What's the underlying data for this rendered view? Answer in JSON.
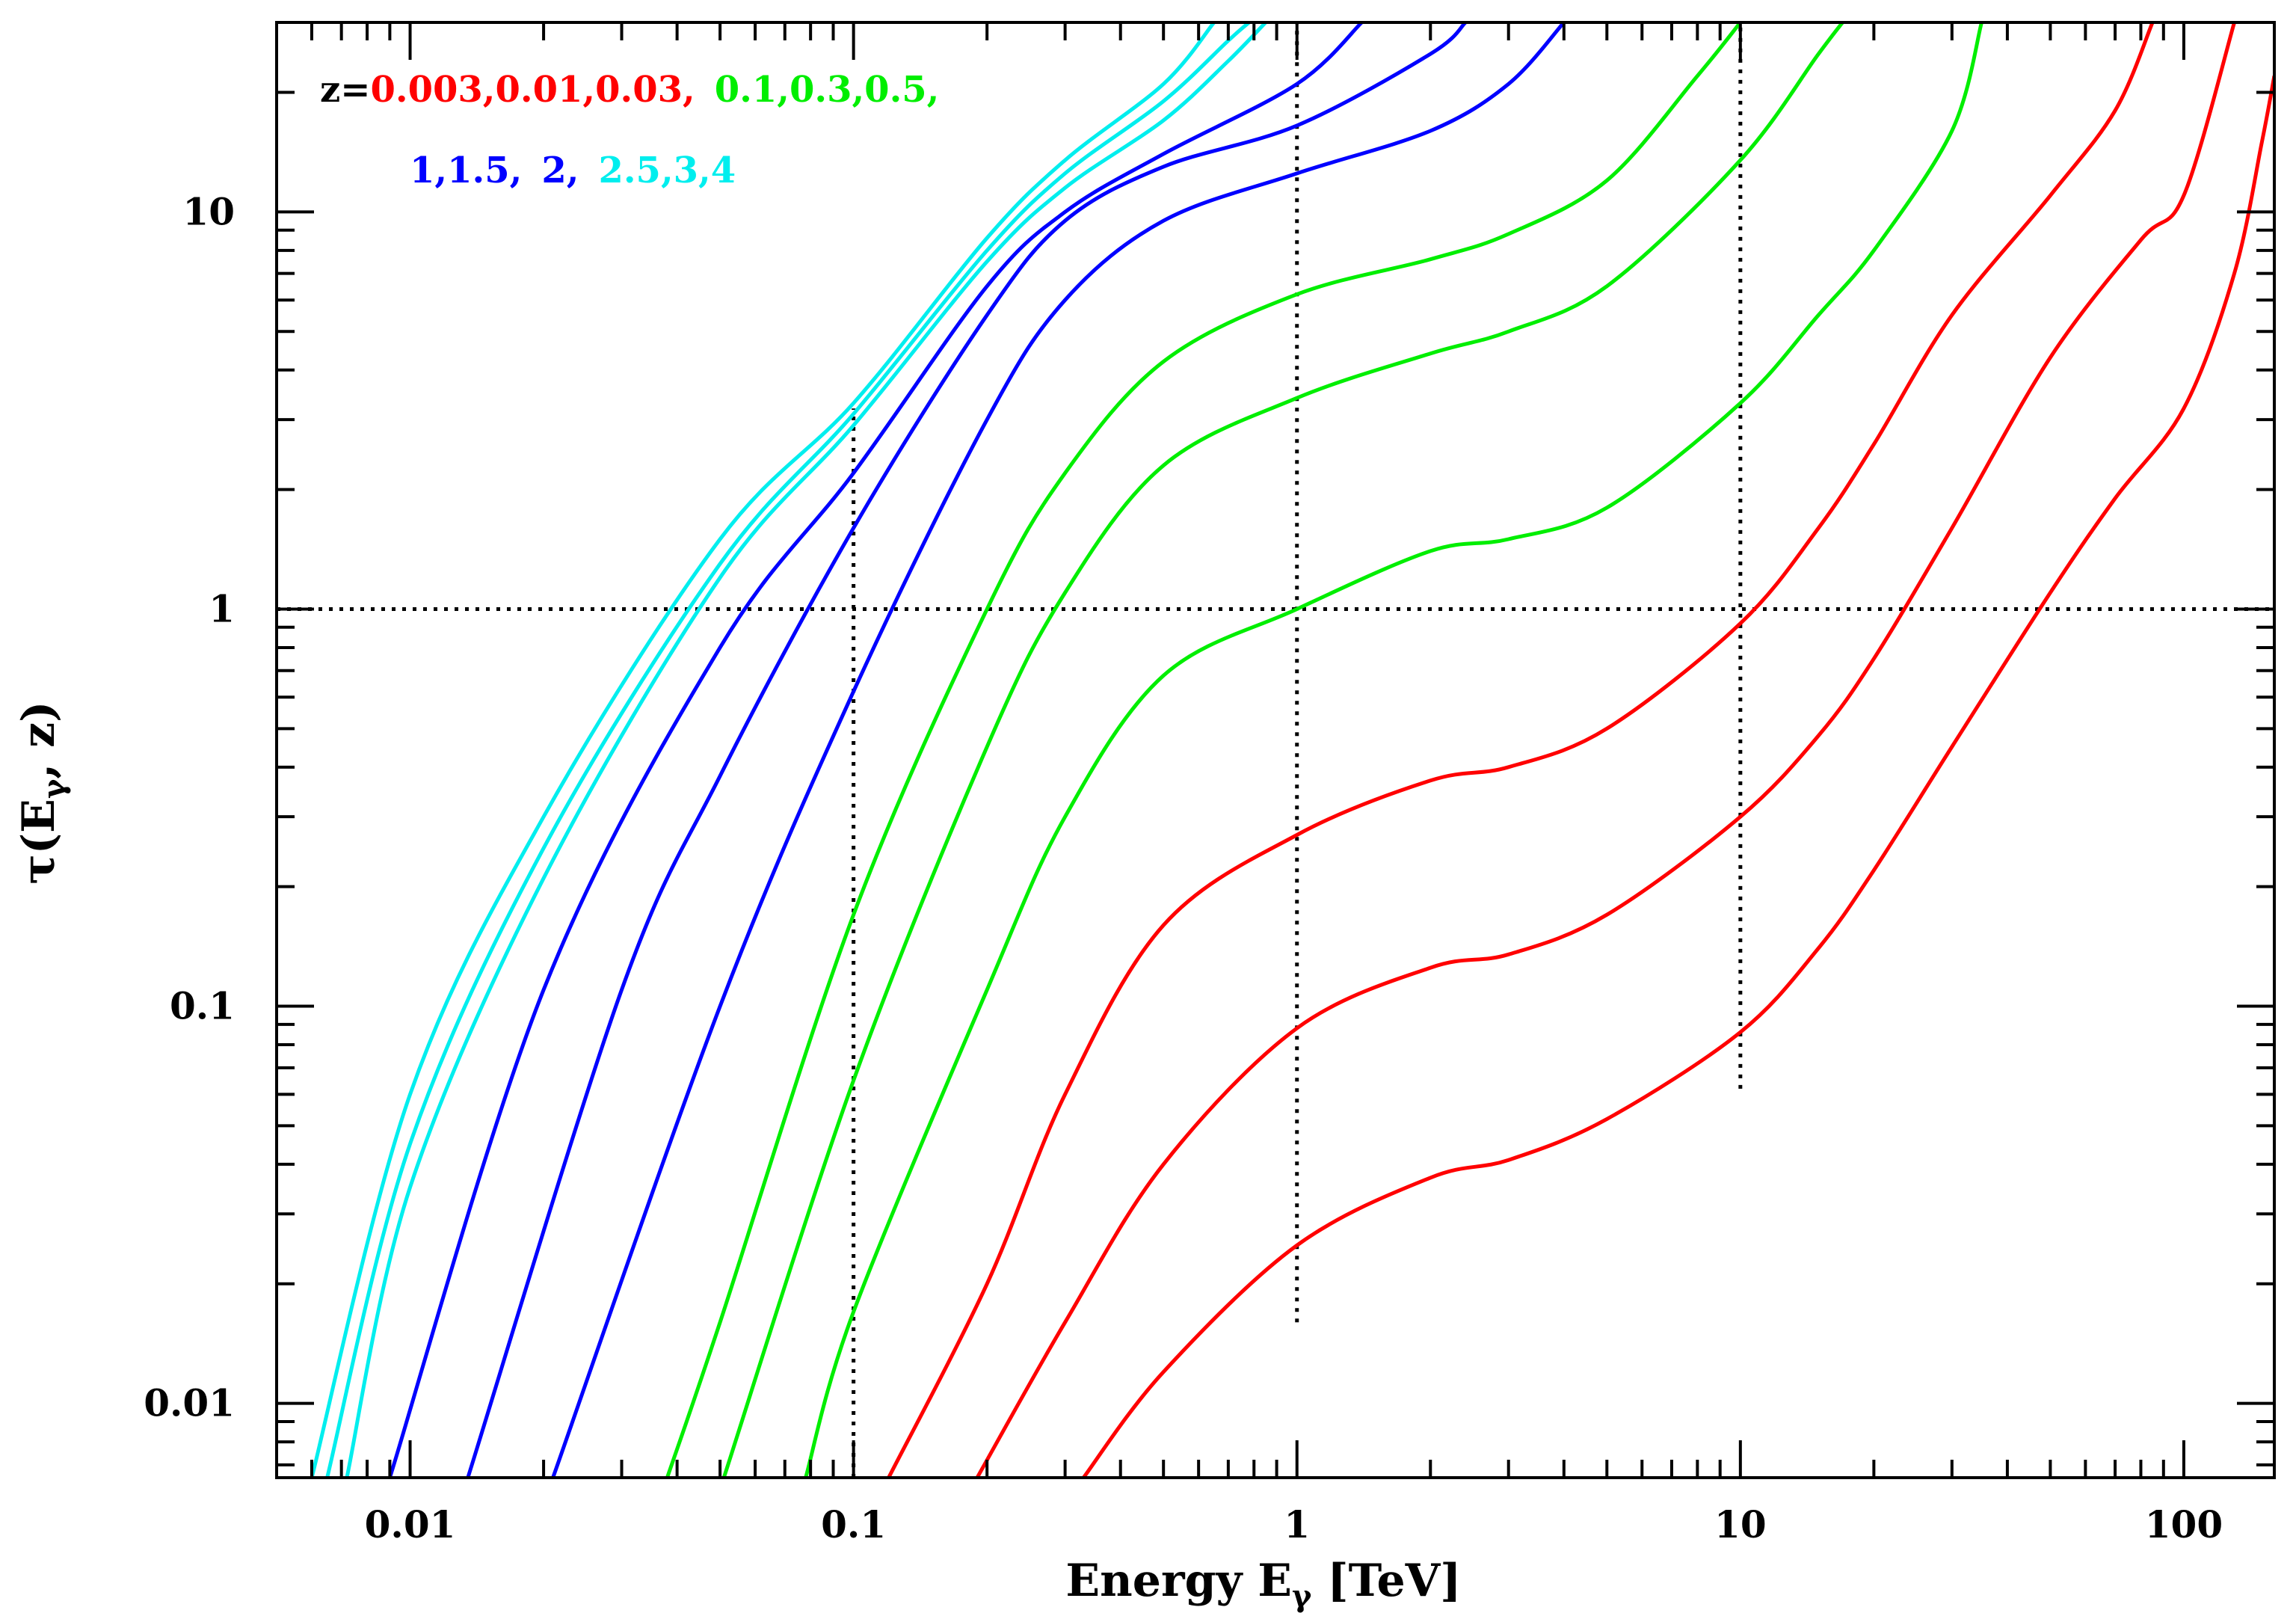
{
  "chart_data": {
    "type": "line",
    "xscale": "log",
    "yscale": "log",
    "xlim": [
      0.005,
      160
    ],
    "ylim": [
      0.0065,
      30
    ],
    "xlabel": "Energy E",
    "xlabel_sub": "γ",
    "xlabel_unit": "[TeV]",
    "ylabel": "τ(E",
    "ylabel_sub": "γ",
    "ylabel_end": ", z)",
    "x_ticks": [
      {
        "value": 0.01,
        "label": "0.01"
      },
      {
        "value": 0.1,
        "label": "0.1"
      },
      {
        "value": 1,
        "label": "1"
      },
      {
        "value": 10,
        "label": "10"
      },
      {
        "value": 100,
        "label": "100"
      }
    ],
    "y_ticks": [
      {
        "value": 0.01,
        "label": "0.01"
      },
      {
        "value": 0.1,
        "label": "0.1"
      },
      {
        "value": 1,
        "label": "1"
      },
      {
        "value": 10,
        "label": "10"
      }
    ],
    "reference_lines": [
      {
        "orientation": "horizontal",
        "value": 1,
        "from": 0.005,
        "to": 160
      },
      {
        "orientation": "vertical",
        "value": 0.1,
        "from": 0.0065,
        "to": 3.2
      },
      {
        "orientation": "vertical",
        "value": 1,
        "from": 0.016,
        "to": 30
      },
      {
        "orientation": "vertical",
        "value": 10,
        "from": 0.062,
        "to": 30
      }
    ],
    "legend": {
      "prefix": "z=",
      "line1": [
        {
          "text": "0.003,0.01,0.03,",
          "color": "#ff0000"
        },
        {
          "text": "0.1,0.3,0.5,",
          "color": "#00ee00"
        }
      ],
      "line2": [
        {
          "text": "1,1.5,",
          "color": "#0000ff"
        },
        {
          "text": "2,",
          "color": "#0000ff"
        },
        {
          "text": "2.5,3,4",
          "color": "#00eeee"
        }
      ]
    },
    "series": [
      {
        "name": "z=0.003",
        "color": "#ff0000",
        "points": [
          [
            0.33,
            0.0065
          ],
          [
            0.5,
            0.012
          ],
          [
            1,
            0.025
          ],
          [
            2,
            0.037
          ],
          [
            3,
            0.041
          ],
          [
            5,
            0.052
          ],
          [
            10,
            0.086
          ],
          [
            15,
            0.14
          ],
          [
            20,
            0.22
          ],
          [
            30,
            0.45
          ],
          [
            50,
            1.1
          ],
          [
            70,
            1.9
          ],
          [
            100,
            3.2
          ],
          [
            130,
            7
          ],
          [
            150,
            15
          ],
          [
            160,
            22
          ]
        ]
      },
      {
        "name": "z=0.01",
        "color": "#ff0000",
        "points": [
          [
            0.19,
            0.0065
          ],
          [
            0.3,
            0.016
          ],
          [
            0.5,
            0.04
          ],
          [
            1,
            0.088
          ],
          [
            2,
            0.125
          ],
          [
            3,
            0.135
          ],
          [
            5,
            0.17
          ],
          [
            10,
            0.3
          ],
          [
            15,
            0.48
          ],
          [
            20,
            0.75
          ],
          [
            30,
            1.6
          ],
          [
            50,
            4.3
          ],
          [
            80,
            8.5
          ],
          [
            100,
            11
          ],
          [
            130,
            30
          ]
        ]
      },
      {
        "name": "z=0.03",
        "color": "#ff0000",
        "points": [
          [
            0.12,
            0.0065
          ],
          [
            0.2,
            0.02
          ],
          [
            0.3,
            0.06
          ],
          [
            0.5,
            0.16
          ],
          [
            1,
            0.27
          ],
          [
            2,
            0.37
          ],
          [
            3,
            0.4
          ],
          [
            5,
            0.5
          ],
          [
            10,
            0.92
          ],
          [
            15,
            1.6
          ],
          [
            20,
            2.6
          ],
          [
            30,
            5.5
          ],
          [
            50,
            11
          ],
          [
            70,
            18
          ],
          [
            85,
            30
          ]
        ]
      },
      {
        "name": "z=0.1",
        "color": "#00ee00",
        "points": [
          [
            0.078,
            0.0065
          ],
          [
            0.1,
            0.017
          ],
          [
            0.2,
            0.11
          ],
          [
            0.3,
            0.3
          ],
          [
            0.5,
            0.68
          ],
          [
            1,
            1
          ],
          [
            2,
            1.4
          ],
          [
            3,
            1.5
          ],
          [
            5,
            1.8
          ],
          [
            10,
            3.3
          ],
          [
            15,
            5.5
          ],
          [
            20,
            8
          ],
          [
            30,
            16
          ],
          [
            35,
            30
          ]
        ]
      },
      {
        "name": "z=0.3",
        "color": "#00ee00",
        "points": [
          [
            0.051,
            0.0065
          ],
          [
            0.1,
            0.065
          ],
          [
            0.2,
            0.45
          ],
          [
            0.3,
            1.1
          ],
          [
            0.5,
            2.3
          ],
          [
            1,
            3.4
          ],
          [
            2,
            4.4
          ],
          [
            3,
            5
          ],
          [
            5,
            6.5
          ],
          [
            10,
            13.5
          ],
          [
            15,
            25
          ],
          [
            17,
            30
          ]
        ]
      },
      {
        "name": "z=0.5",
        "color": "#00ee00",
        "points": [
          [
            0.038,
            0.0065
          ],
          [
            0.05,
            0.016
          ],
          [
            0.1,
            0.17
          ],
          [
            0.2,
            1
          ],
          [
            0.3,
            2.2
          ],
          [
            0.5,
            4.2
          ],
          [
            1,
            6.2
          ],
          [
            2,
            7.6
          ],
          [
            3,
            8.8
          ],
          [
            5,
            12
          ],
          [
            8,
            22
          ],
          [
            10,
            30
          ]
        ]
      },
      {
        "name": "z=1",
        "color": "#0000ff",
        "points": [
          [
            0.021,
            0.0065
          ],
          [
            0.05,
            0.1
          ],
          [
            0.1,
            0.62
          ],
          [
            0.2,
            3
          ],
          [
            0.3,
            6
          ],
          [
            0.5,
            9.5
          ],
          [
            1,
            12.5
          ],
          [
            2,
            16
          ],
          [
            3,
            21
          ],
          [
            4,
            30
          ]
        ]
      },
      {
        "name": "z=1.5",
        "color": "#0000ff",
        "points": [
          [
            0.0135,
            0.0065
          ],
          [
            0.03,
            0.11
          ],
          [
            0.05,
            0.38
          ],
          [
            0.1,
            1.6
          ],
          [
            0.2,
            5.5
          ],
          [
            0.3,
            9.5
          ],
          [
            0.5,
            13
          ],
          [
            1,
            16.5
          ],
          [
            2,
            25
          ],
          [
            2.4,
            30
          ]
        ]
      },
      {
        "name": "z=2",
        "color": "#0000ff",
        "points": [
          [
            0.009,
            0.0065
          ],
          [
            0.02,
            0.11
          ],
          [
            0.05,
            0.8
          ],
          [
            0.1,
            2.2
          ],
          [
            0.2,
            6.5
          ],
          [
            0.3,
            10
          ],
          [
            0.5,
            14
          ],
          [
            1,
            21
          ],
          [
            1.4,
            30
          ]
        ]
      },
      {
        "name": "z=2.5",
        "color": "#00eeee",
        "points": [
          [
            0.0072,
            0.0065
          ],
          [
            0.01,
            0.035
          ],
          [
            0.02,
            0.21
          ],
          [
            0.05,
            1.2
          ],
          [
            0.1,
            2.9
          ],
          [
            0.2,
            7.5
          ],
          [
            0.3,
            11.5
          ],
          [
            0.5,
            17
          ],
          [
            0.7,
            24
          ],
          [
            0.85,
            30
          ]
        ]
      },
      {
        "name": "z=3",
        "color": "#00eeee",
        "points": [
          [
            0.0065,
            0.0065
          ],
          [
            0.01,
            0.045
          ],
          [
            0.02,
            0.25
          ],
          [
            0.05,
            1.3
          ],
          [
            0.1,
            3.1
          ],
          [
            0.2,
            8
          ],
          [
            0.3,
            12.5
          ],
          [
            0.5,
            19
          ],
          [
            0.7,
            27
          ],
          [
            0.78,
            30
          ]
        ]
      },
      {
        "name": "z=4",
        "color": "#00eeee",
        "points": [
          [
            0.006,
            0.0065
          ],
          [
            0.01,
            0.06
          ],
          [
            0.02,
            0.3
          ],
          [
            0.05,
            1.5
          ],
          [
            0.1,
            3.3
          ],
          [
            0.2,
            8.6
          ],
          [
            0.3,
            13.5
          ],
          [
            0.5,
            21
          ],
          [
            0.65,
            30
          ]
        ]
      }
    ]
  }
}
